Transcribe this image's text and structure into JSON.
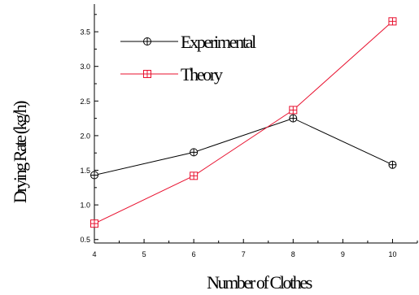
{
  "chart_data": {
    "type": "line",
    "xlabel": "Number of Clothes",
    "ylabel": "Drying Rate (kg/h)",
    "xlim": [
      4,
      10.5
    ],
    "ylim": [
      0.45,
      3.9
    ],
    "x_ticks": [
      4,
      5,
      6,
      7,
      8,
      9,
      10
    ],
    "y_ticks": [
      0.5,
      1.0,
      1.5,
      2.0,
      2.5,
      3.0,
      3.5
    ],
    "x_tick_labels": [
      "4",
      "5",
      "6",
      "7",
      "8",
      "9",
      "10"
    ],
    "y_tick_labels": [
      "0.5",
      "1.0",
      "1.5",
      "2.0",
      "2.5",
      "3.0",
      "3.5"
    ],
    "grid": false,
    "legend_position": "top-left",
    "series": [
      {
        "name": "Experimental",
        "color": "#000000",
        "marker": "circle-plus",
        "x": [
          4,
          6,
          8,
          10
        ],
        "y": [
          1.43,
          1.76,
          2.25,
          1.58
        ]
      },
      {
        "name": "Theory",
        "color": "#e8102e",
        "marker": "square-plus",
        "x": [
          4,
          6,
          8,
          10
        ],
        "y": [
          0.73,
          1.42,
          2.37,
          3.65
        ]
      }
    ]
  }
}
